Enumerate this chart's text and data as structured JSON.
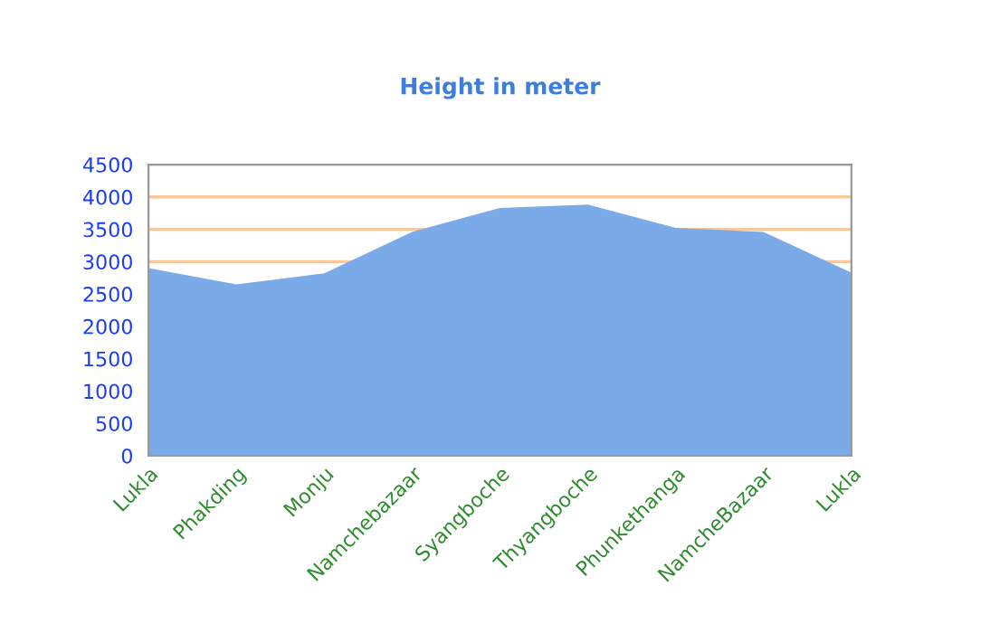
{
  "chart_data": {
    "type": "area",
    "title": "Height in meter",
    "categories": [
      "Lukla",
      "Phakding",
      "Monju",
      "Namchebazaar",
      "Syangboche",
      "Thyangboche",
      "Phunkethanga",
      "NamcheBazaar",
      "Lukla"
    ],
    "series": [
      {
        "color": "#7aaae8",
        "values": [
          2900,
          2650,
          2820,
          3460,
          3830,
          3880,
          3520,
          3460,
          2830
        ]
      }
    ],
    "ylim": [
      0,
      4500
    ],
    "yticks": [
      0,
      500,
      1000,
      1500,
      2000,
      2500,
      3000,
      3500,
      4000,
      4500
    ],
    "grid": "y"
  }
}
